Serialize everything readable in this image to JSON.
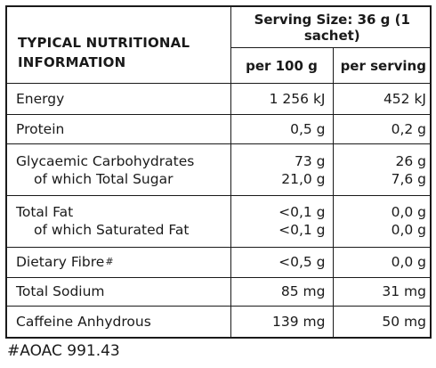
{
  "header": {
    "title_line1": "TYPICAL NUTRITIONAL",
    "title_line2": "INFORMATION",
    "serving_size": "Serving Size: 36 g (1 sachet)",
    "col_per100": "per 100 g",
    "col_perserving": "per serving"
  },
  "rows": {
    "energy": {
      "name": "Energy",
      "per100": "1 256 kJ",
      "serving": "452 kJ"
    },
    "protein": {
      "name": "Protein",
      "per100": "0,5 g",
      "serving": "0,2 g"
    },
    "carbs": {
      "name": "Glycaemic Carbohydrates",
      "per100": "73 g",
      "serving": "26 g",
      "sub_name": "of which Total Sugar",
      "sub_per100": "21,0 g",
      "sub_serving": "7,6 g"
    },
    "fat": {
      "name": "Total Fat",
      "per100": "<0,1 g",
      "serving": "0,0 g",
      "sub_name": "of which Saturated Fat",
      "sub_per100": "<0,1 g",
      "sub_serving": "0,0 g"
    },
    "fibre": {
      "name": "Dietary Fibre",
      "marker": "#",
      "per100": "<0,5 g",
      "serving": "0,0 g"
    },
    "sodium": {
      "name": "Total Sodium",
      "per100": "85 mg",
      "serving": "31 mg"
    },
    "caffeine": {
      "name": "Caffeine Anhydrous",
      "per100": "139 mg",
      "serving": "50 mg"
    }
  },
  "footnote": "#AOAC 991.43"
}
